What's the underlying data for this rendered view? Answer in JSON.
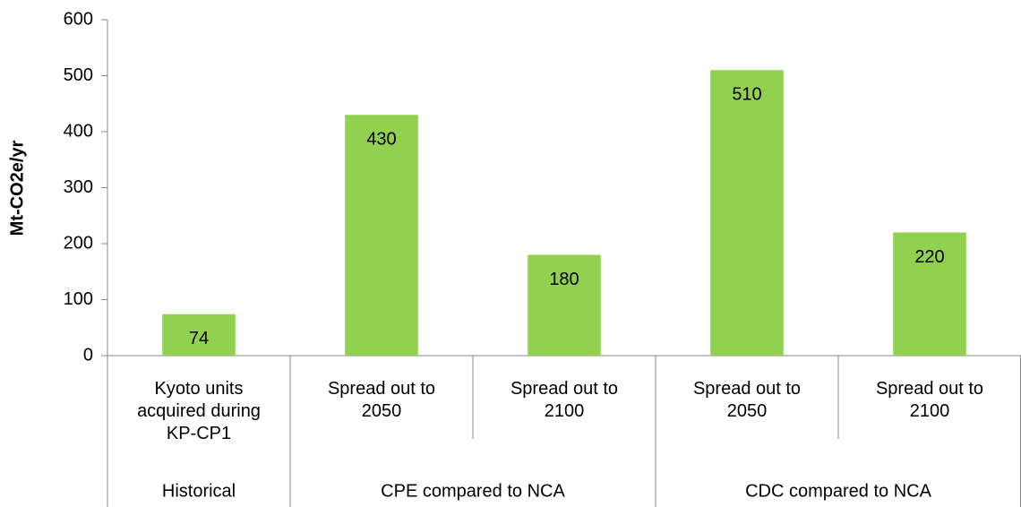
{
  "chart_data": {
    "type": "bar",
    "y_label": "Mt-CO2e/yr",
    "groups": [
      {
        "name": "Historical",
        "categories": [
          "Kyoto units acquired during KP-CP1"
        ],
        "values": [
          74
        ]
      },
      {
        "name": "CPE compared to NCA",
        "categories": [
          "Spread out to 2050",
          "Spread out to 2100"
        ],
        "values": [
          430,
          180
        ]
      },
      {
        "name": "CDC compared to NCA",
        "categories": [
          "Spread out to 2050",
          "Spread out to 2100"
        ],
        "values": [
          510,
          220
        ]
      }
    ],
    "color": "#92d050",
    "ylim": [
      0,
      600
    ],
    "yticks": [
      0,
      100,
      200,
      300,
      400,
      500,
      600
    ],
    "grid": false
  }
}
